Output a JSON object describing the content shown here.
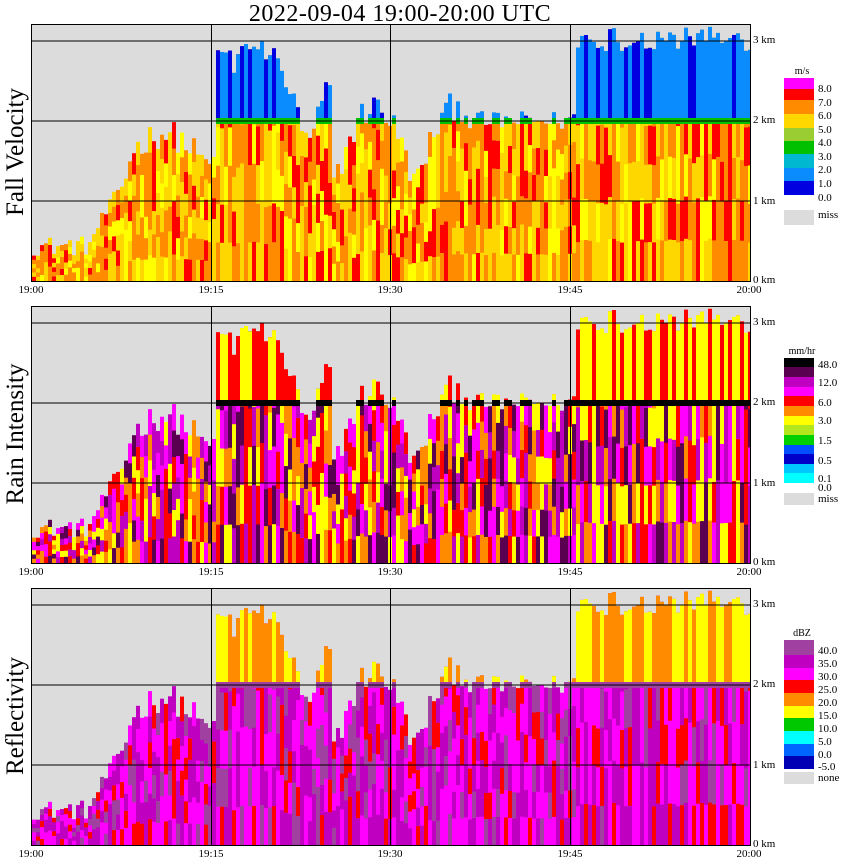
{
  "header": {
    "title": "2022-09-04   19:00-20:00 UTC"
  },
  "time_ticks": [
    "19:00",
    "19:15",
    "19:30",
    "19:45",
    "20:00"
  ],
  "height_ticks": [
    "0 km",
    "1 km",
    "2 km",
    "3 km"
  ],
  "panels": [
    {
      "label": "Fall Velocity",
      "unit": "m/s",
      "legend": [
        {
          "label": "8.0",
          "color": "#ff00ff"
        },
        {
          "label": "7.0",
          "color": "#ff0000"
        },
        {
          "label": "6.0",
          "color": "#ff8c00"
        },
        {
          "label": "5.0",
          "color": "#ffd700"
        },
        {
          "label": "4.0",
          "color": "#9acd32"
        },
        {
          "label": "3.0",
          "color": "#00c000"
        },
        {
          "label": "2.0",
          "color": "#00b8d0"
        },
        {
          "label": "1.0",
          "color": "#0a8cff"
        },
        {
          "label": "0.0",
          "color": "#0000e0"
        },
        {
          "label": "miss",
          "color": "#dcdcdc"
        }
      ]
    },
    {
      "label": "Rain Intensity",
      "unit": "mm/hr",
      "legend": [
        {
          "label": "48.0",
          "color": "#000000"
        },
        {
          "label": "",
          "color": "#5a0050"
        },
        {
          "label": "12.0",
          "color": "#c000c0"
        },
        {
          "label": "",
          "color": "#ff00ff"
        },
        {
          "label": "6.0",
          "color": "#ff0000"
        },
        {
          "label": "",
          "color": "#ff8c00"
        },
        {
          "label": "3.0",
          "color": "#ffff00"
        },
        {
          "label": "",
          "color": "#b4e61e"
        },
        {
          "label": "1.5",
          "color": "#00d000"
        },
        {
          "label": "",
          "color": "#0050ff"
        },
        {
          "label": "0.5",
          "color": "#0000c8"
        },
        {
          "label": "",
          "color": "#00c8ff"
        },
        {
          "label": "0.1",
          "color": "#00ffff"
        },
        {
          "label": "0.0",
          "color": "#ffffff"
        },
        {
          "label": "miss",
          "color": "#dcdcdc"
        }
      ]
    },
    {
      "label": "Reflectivity",
      "unit": "dBZ",
      "legend": [
        {
          "label": "40.0",
          "color": "#a040a0"
        },
        {
          "label": "35.0",
          "color": "#c000c0"
        },
        {
          "label": "30.0",
          "color": "#ff00ff"
        },
        {
          "label": "25.0",
          "color": "#ff0000"
        },
        {
          "label": "20.0",
          "color": "#ff8c00"
        },
        {
          "label": "15.0",
          "color": "#ffff00"
        },
        {
          "label": "10.0",
          "color": "#00c800"
        },
        {
          "label": "5.0",
          "color": "#00ffff"
        },
        {
          "label": "0.0",
          "color": "#0064ff"
        },
        {
          "label": "-5.0",
          "color": "#0000b4"
        },
        {
          "label": "none",
          "color": "#dcdcdc"
        }
      ]
    }
  ],
  "chart_data": [
    {
      "type": "heatmap",
      "title": "Fall Velocity",
      "x": {
        "ticks": [
          "19:00",
          "19:15",
          "19:30",
          "19:45",
          "20:00"
        ]
      },
      "y": {
        "ticks": [
          "0 km",
          "1 km",
          "2 km",
          "3 km"
        ],
        "range_km": [
          0,
          3.2
        ]
      },
      "colorbar_unit": "m/s",
      "colorbar_levels": [
        0.0,
        1.0,
        2.0,
        3.0,
        4.0,
        5.0,
        6.0,
        7.0,
        8.0
      ],
      "grid": true
    },
    {
      "type": "heatmap",
      "title": "Rain Intensity",
      "x": {
        "ticks": [
          "19:00",
          "19:15",
          "19:30",
          "19:45",
          "20:00"
        ]
      },
      "y": {
        "ticks": [
          "0 km",
          "1 km",
          "2 km",
          "3 km"
        ],
        "range_km": [
          0,
          3.2
        ]
      },
      "colorbar_unit": "mm/hr",
      "colorbar_levels": [
        0.0,
        0.1,
        0.5,
        1.5,
        3.0,
        6.0,
        12.0,
        48.0
      ],
      "grid": true
    },
    {
      "type": "heatmap",
      "title": "Reflectivity",
      "x": {
        "ticks": [
          "19:00",
          "19:15",
          "19:30",
          "19:45",
          "20:00"
        ]
      },
      "y": {
        "ticks": [
          "0 km",
          "1 km",
          "2 km",
          "3 km"
        ],
        "range_km": [
          0,
          3.2
        ]
      },
      "colorbar_unit": "dBZ",
      "colorbar_levels": [
        -5.0,
        0.0,
        5.0,
        10.0,
        15.0,
        20.0,
        25.0,
        30.0,
        35.0,
        40.0
      ],
      "grid": true
    }
  ]
}
